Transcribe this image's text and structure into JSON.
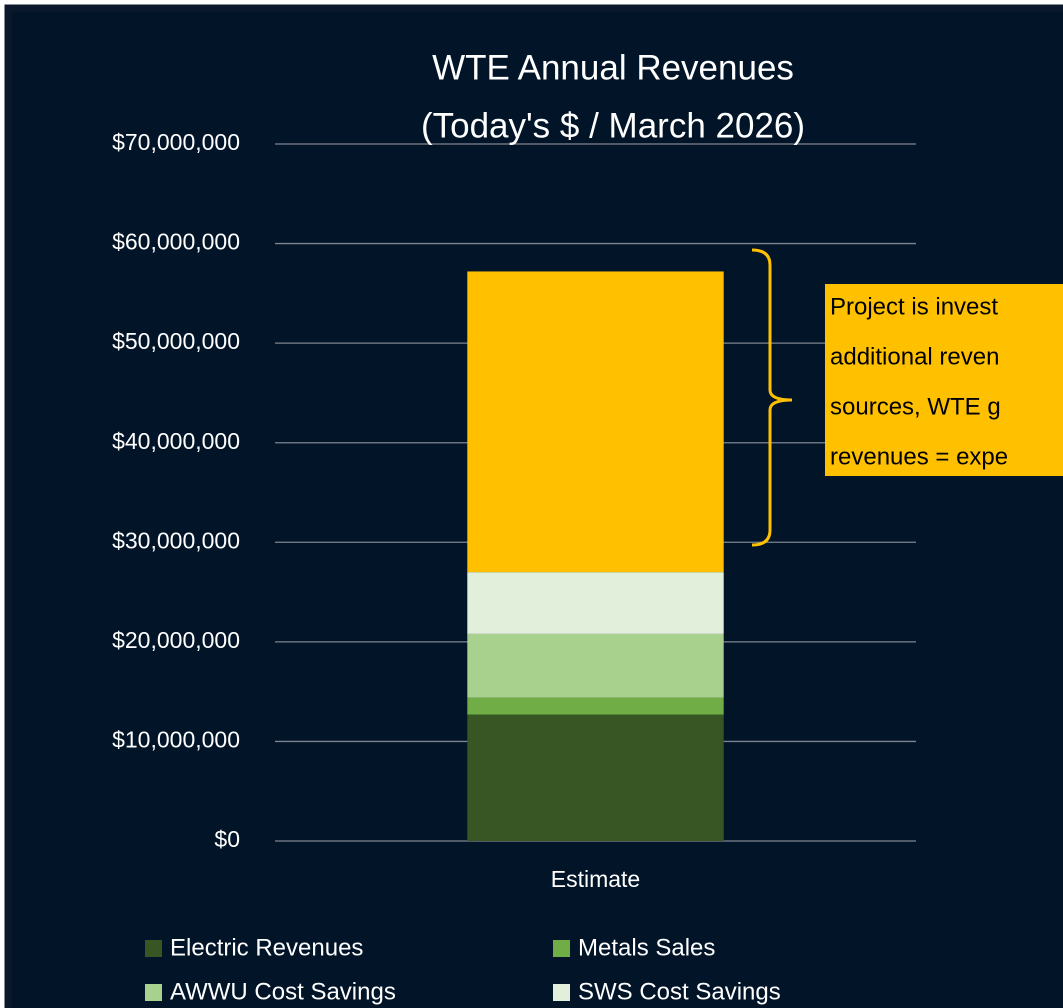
{
  "chart_data": {
    "type": "bar",
    "stacked": true,
    "title": [
      "WTE Annual Revenues",
      "(Today's $ / March 2026)"
    ],
    "categories": [
      "Estimate"
    ],
    "series": [
      {
        "name": "Electric Revenues",
        "color": "#375623",
        "values": [
          12700000
        ]
      },
      {
        "name": "Metals Sales",
        "color": "#70ad47",
        "values": [
          1700000
        ]
      },
      {
        "name": "AWWU Cost Savings",
        "color": "#a9d18e",
        "values": [
          6400000
        ]
      },
      {
        "name": "SWS Cost Savings",
        "color": "#e2efda",
        "values": [
          6200000
        ]
      },
      {
        "color": "#ffc000",
        "values": [
          30200000
        ]
      }
    ],
    "ylim": [
      0,
      70000000
    ],
    "yticks": [
      {
        "value": 0,
        "label": "$0"
      },
      {
        "value": 10000000,
        "label": "$10,000,000"
      },
      {
        "value": 20000000,
        "label": "$20,000,000"
      },
      {
        "value": 30000000,
        "label": "$30,000,000"
      },
      {
        "value": 40000000,
        "label": "$40,000,000"
      },
      {
        "value": 50000000,
        "label": "$50,000,000"
      },
      {
        "value": 60000000,
        "label": "$60,000,000"
      },
      {
        "value": 70000000,
        "label": "$70,000,000"
      }
    ],
    "grid": true,
    "annotation": [
      "Project is invest",
      "additional reven",
      "sources, WTE g",
      "revenues = expe"
    ]
  }
}
